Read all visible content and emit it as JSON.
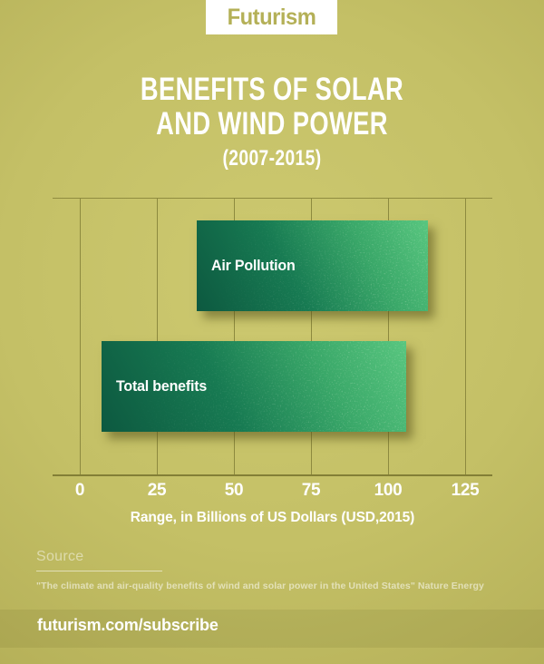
{
  "header": {
    "logo": "Futurism"
  },
  "title": {
    "line1": "BENEFITS OF SOLAR",
    "line2": "AND WIND POWER",
    "subtitle": "(2007-2015)"
  },
  "chart_data": {
    "type": "bar",
    "orientation": "horizontal",
    "title": "BENEFITS OF SOLAR AND WIND POWER (2007-2015)",
    "xlabel": "Range, in Billions of US Dollars (USD,2015)",
    "x_ticks": [
      0,
      25,
      50,
      75,
      100,
      125
    ],
    "xlim": [
      0,
      134
    ],
    "grid": true,
    "legend": false,
    "bars": [
      {
        "label": "Air Pollution",
        "range_billions_usd": [
          38,
          113
        ]
      },
      {
        "label": "Total benefits",
        "range_billions_usd": [
          7,
          106
        ]
      }
    ]
  },
  "source": {
    "label": "Source",
    "citation": "\"The climate and air-quality benefits of wind and solar power in the United States\" Nature Energy"
  },
  "footer": {
    "url": "futurism.com/subscribe"
  },
  "colors": {
    "background_center": "#cdc970",
    "background_edge": "#989542",
    "bar_gradient_dark": "#0d5940",
    "bar_gradient_light": "#58c67f",
    "logo": "#b4b057",
    "text": "#ffffff",
    "gridline": "#8d8a3f"
  }
}
